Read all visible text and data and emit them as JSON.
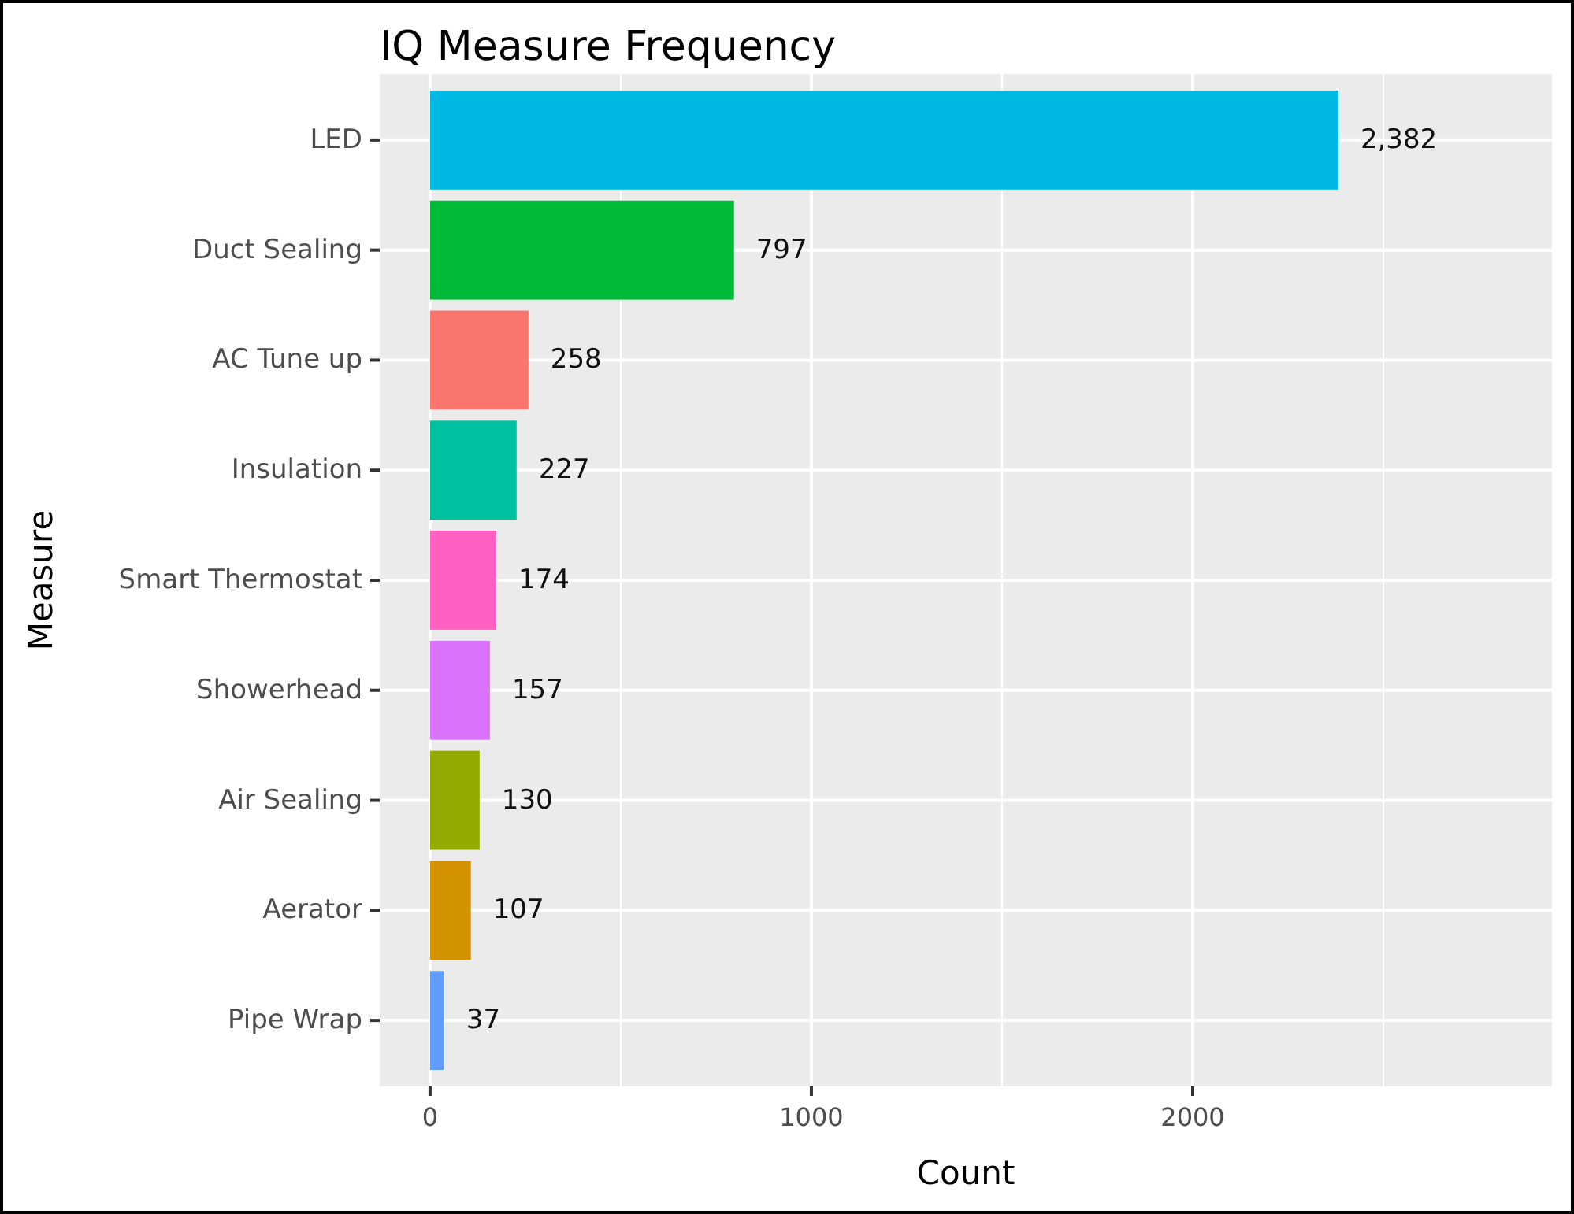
{
  "chart_data": {
    "type": "bar",
    "orientation": "horizontal",
    "title": "IQ Measure Frequency",
    "xlabel": "Count",
    "ylabel": "Measure",
    "categories": [
      "LED",
      "Duct Sealing",
      "AC Tune up",
      "Insulation",
      "Smart Thermostat",
      "Showerhead",
      "Air Sealing",
      "Aerator",
      "Pipe Wrap"
    ],
    "values": [
      2382,
      797,
      258,
      227,
      174,
      157,
      130,
      107,
      37
    ],
    "colors": [
      "#00b9e3",
      "#00ba38",
      "#f8766d",
      "#00c19f",
      "#ff61c3",
      "#db72fb",
      "#93aa00",
      "#d39200",
      "#619cff"
    ],
    "value_labels": [
      "2,382",
      "797",
      "258",
      "227",
      "174",
      "157",
      "130",
      "107",
      "37"
    ],
    "xlim": [
      -132,
      2942
    ],
    "xticks": [
      0,
      1000,
      2000
    ],
    "grid": true
  }
}
